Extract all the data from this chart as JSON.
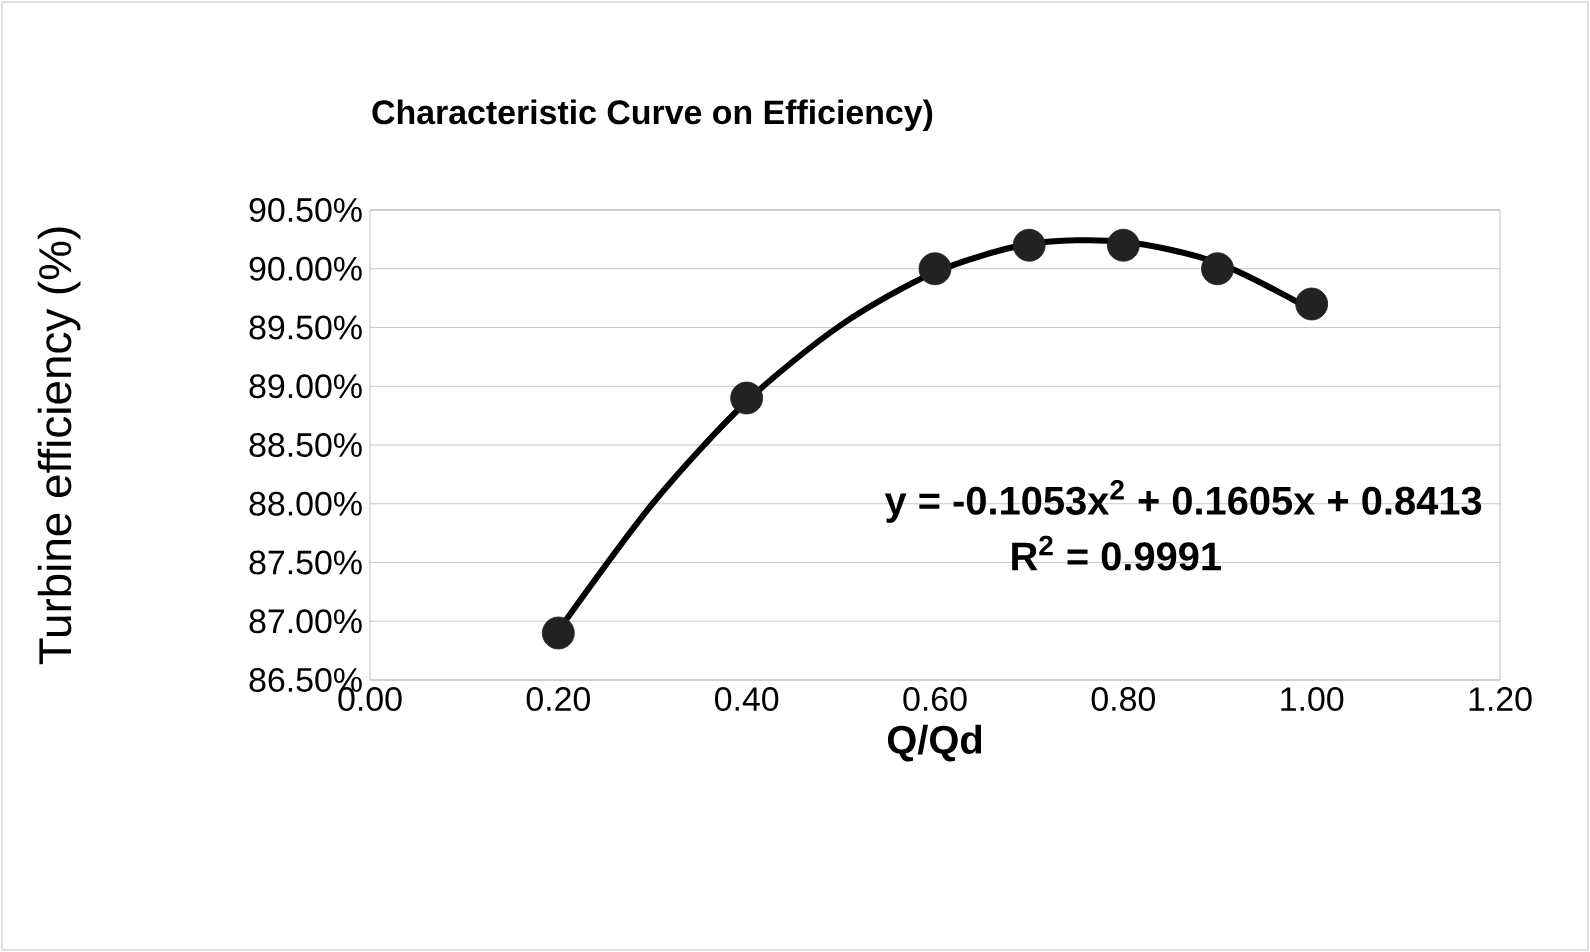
{
  "chart_data": {
    "type": "scatter",
    "title": "Characteristic Curve on Efficiency)",
    "xlabel": "Q/Qd",
    "ylabel": "Turbine efficiency (%)",
    "series": [
      {
        "color": "#222222",
        "marker": "circle",
        "x": [
          0.2,
          0.4,
          0.6,
          0.7,
          0.8,
          0.9,
          1.0
        ],
        "values": [
          86.9,
          88.9,
          90.0,
          90.2,
          90.2,
          90.0,
          89.7
        ]
      },
      {
        "type": "line",
        "color": "#000000",
        "marker": "none",
        "line_style": "solid",
        "x": [
          0.2,
          0.3,
          0.4,
          0.5,
          0.6,
          0.7,
          0.8,
          0.9,
          1.0
        ],
        "values": [
          86.92,
          88.0,
          88.87,
          89.52,
          89.97,
          90.21,
          90.23,
          90.05,
          89.65
        ]
      }
    ],
    "xlim": [
      0,
      1.2
    ],
    "ylim": [
      86.5,
      90.5
    ],
    "xticks": [
      {
        "value": 0,
        "label": "0.00"
      },
      {
        "value": 0.2,
        "label": "0.20"
      },
      {
        "value": 0.4,
        "label": "0.40"
      },
      {
        "value": 0.6,
        "label": "0.60"
      },
      {
        "value": 0.8,
        "label": "0.80"
      },
      {
        "value": 1.0,
        "label": "1.00"
      },
      {
        "value": 1.2,
        "label": "1.20"
      }
    ],
    "yticks": [
      {
        "value": 86.5,
        "label": "86.50%"
      },
      {
        "value": 87.0,
        "label": "87.00%"
      },
      {
        "value": 87.5,
        "label": "87.50%"
      },
      {
        "value": 88.0,
        "label": "88.00%"
      },
      {
        "value": 88.5,
        "label": "88.50%"
      },
      {
        "value": 89.0,
        "label": "89.00%"
      },
      {
        "value": 89.5,
        "label": "89.50%"
      },
      {
        "value": 90.0,
        "label": "90.00%"
      },
      {
        "value": 90.5,
        "label": "90.50%"
      }
    ],
    "grid": "y",
    "annotations": [
      "y = -0.1053x$^{2}$ + 0.1605x + 0.8413",
      "R$^{2}$ = 0.9991"
    ]
  }
}
